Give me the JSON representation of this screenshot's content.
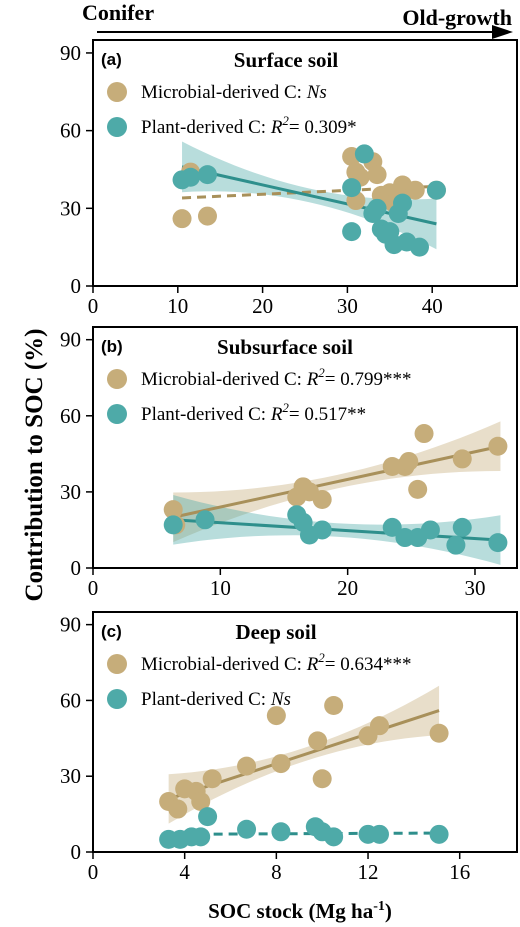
{
  "top_arrow": {
    "left_label": "Conifer",
    "right_label": "Old-growth"
  },
  "y_axis_label": "Contribution to SOC  (%)",
  "x_axis_label": {
    "main": "SOC stock (Mg ha",
    "sup": "-1",
    "close": ")"
  },
  "colors": {
    "microbial": "#c6ad7a",
    "plant": "#4eaaa8",
    "microbial_line": "#a8905a",
    "plant_line": "#2e8f8c"
  },
  "chart_data": [
    {
      "type": "scatter",
      "panel_label": "(a)",
      "title": "Surface soil",
      "xlim": [
        0,
        50
      ],
      "ylim": [
        0,
        95
      ],
      "xticks": [
        0,
        10,
        20,
        30,
        40
      ],
      "yticks": [
        0,
        30,
        60,
        90
      ],
      "legend": [
        {
          "text": "Microbial-derived C: ",
          "stat": "Ns",
          "stat_italic": true,
          "sig": ""
        },
        {
          "text": "Plant-derived C: ",
          "r2": "R",
          "value": "= 0.309",
          "sig": "*"
        }
      ],
      "series": [
        {
          "name": "Microbial-derived C",
          "fit": "dashed",
          "line": [
            [
              10.5,
              34
            ],
            [
              40.5,
              38.5
            ]
          ],
          "points": [
            [
              10.5,
              26
            ],
            [
              11.5,
              44
            ],
            [
              13.5,
              27
            ],
            [
              30.5,
              50
            ],
            [
              31,
              44
            ],
            [
              31.5,
              42
            ],
            [
              31,
              33
            ],
            [
              33,
              48
            ],
            [
              33.5,
              43
            ],
            [
              34,
              35
            ],
            [
              35,
              36
            ],
            [
              35.5,
              32
            ],
            [
              36,
              36
            ],
            [
              36.5,
              39
            ],
            [
              38,
              37
            ],
            [
              40.5,
              37
            ]
          ]
        },
        {
          "name": "Plant-derived C",
          "fit": "solid",
          "band": true,
          "line": [
            [
              10.5,
              46
            ],
            [
              40.5,
              24
            ]
          ],
          "points": [
            [
              10.5,
              41
            ],
            [
              11.5,
              42
            ],
            [
              13.5,
              43
            ],
            [
              30.5,
              38
            ],
            [
              30.5,
              21
            ],
            [
              32,
              51
            ],
            [
              33,
              28
            ],
            [
              33.5,
              30
            ],
            [
              34,
              22
            ],
            [
              34.5,
              20
            ],
            [
              35,
              21
            ],
            [
              35.5,
              16
            ],
            [
              36,
              28
            ],
            [
              36.5,
              32
            ],
            [
              37,
              17
            ],
            [
              38.5,
              15
            ],
            [
              40.5,
              37
            ]
          ]
        }
      ]
    },
    {
      "type": "scatter",
      "panel_label": "(b)",
      "title": "Subsurface soil",
      "xlim": [
        0,
        33.3
      ],
      "ylim": [
        0,
        95
      ],
      "xticks": [
        0,
        10,
        20,
        30
      ],
      "yticks": [
        0,
        30,
        60,
        90
      ],
      "legend": [
        {
          "text": "Microbial-derived C: ",
          "r2": "R",
          "value": "= 0.799",
          "sig": "***"
        },
        {
          "text": "Plant-derived C: ",
          "r2": "R",
          "value": "= 0.517",
          "sig": "**"
        }
      ],
      "series": [
        {
          "name": "Microbial-derived C",
          "fit": "solid",
          "band": true,
          "line": [
            [
              6.3,
              20
            ],
            [
              32,
              48
            ]
          ],
          "points": [
            [
              6.3,
              23
            ],
            [
              6.5,
              17
            ],
            [
              16,
              28
            ],
            [
              16.5,
              32
            ],
            [
              17,
              30
            ],
            [
              18,
              27
            ],
            [
              23.5,
              40
            ],
            [
              24.5,
              40
            ],
            [
              24.8,
              42
            ],
            [
              25.5,
              31
            ],
            [
              26,
              53
            ],
            [
              29,
              43
            ],
            [
              31.8,
              48
            ]
          ]
        },
        {
          "name": "Plant-derived C",
          "fit": "solid",
          "band": true,
          "line": [
            [
              6.3,
              19
            ],
            [
              32,
              11
            ]
          ],
          "points": [
            [
              6.3,
              17
            ],
            [
              8.8,
              19
            ],
            [
              16,
              21
            ],
            [
              16.5,
              18
            ],
            [
              17,
              13
            ],
            [
              18,
              15
            ],
            [
              23.5,
              16
            ],
            [
              24.5,
              12
            ],
            [
              25.5,
              12
            ],
            [
              26.5,
              15
            ],
            [
              28.5,
              9
            ],
            [
              29,
              16
            ],
            [
              31.8,
              10
            ]
          ]
        }
      ]
    },
    {
      "type": "scatter",
      "panel_label": "(c)",
      "title": "Deep soil",
      "xlim": [
        0,
        18.5
      ],
      "ylim": [
        0,
        95
      ],
      "xticks": [
        0,
        4,
        8,
        12,
        16
      ],
      "yticks": [
        0,
        30,
        60,
        90
      ],
      "legend": [
        {
          "text": "Microbial-derived C: ",
          "r2": "R",
          "value": "= 0.634",
          "sig": "***"
        },
        {
          "text": "Plant-derived C: ",
          "stat": "Ns",
          "stat_italic": true,
          "sig": ""
        }
      ],
      "series": [
        {
          "name": "Microbial-derived C",
          "fit": "solid",
          "band": true,
          "line": [
            [
              3.3,
              21
            ],
            [
              15.1,
              56
            ]
          ],
          "points": [
            [
              3.3,
              20
            ],
            [
              3.7,
              17
            ],
            [
              4,
              25
            ],
            [
              4.5,
              24
            ],
            [
              4.7,
              20
            ],
            [
              5.2,
              29
            ],
            [
              6.7,
              34
            ],
            [
              8,
              54
            ],
            [
              8.2,
              35
            ],
            [
              9.8,
              44
            ],
            [
              10,
              29
            ],
            [
              10.5,
              58
            ],
            [
              12,
              46
            ],
            [
              12.5,
              50
            ],
            [
              15.1,
              47
            ]
          ]
        },
        {
          "name": "Plant-derived C",
          "fit": "dashed",
          "line": [
            [
              3.3,
              7
            ],
            [
              15.1,
              7.5
            ]
          ],
          "points": [
            [
              3.3,
              5
            ],
            [
              3.8,
              5
            ],
            [
              4.3,
              6
            ],
            [
              4.7,
              6
            ],
            [
              5,
              14
            ],
            [
              6.7,
              9
            ],
            [
              8.2,
              8
            ],
            [
              9.7,
              10
            ],
            [
              10,
              8
            ],
            [
              10.5,
              6
            ],
            [
              12,
              7
            ],
            [
              12.5,
              7
            ],
            [
              15.1,
              7
            ]
          ]
        }
      ]
    }
  ]
}
